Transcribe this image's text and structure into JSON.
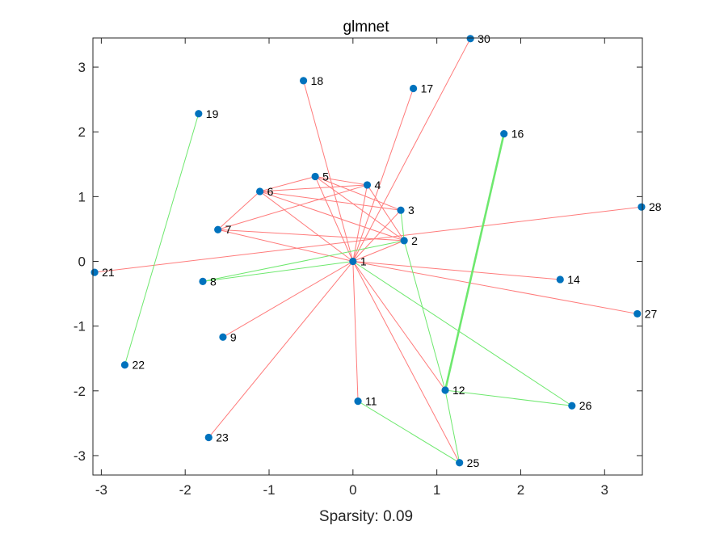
{
  "chart_data": {
    "type": "scatter",
    "title": "glmnet",
    "xlabel": "Sparsity: 0.09",
    "ylabel": "",
    "xlim": [
      -3.1,
      3.45
    ],
    "ylim": [
      -3.3,
      3.45
    ],
    "xticks": [
      -3,
      -2,
      -1,
      0,
      1,
      2,
      3
    ],
    "yticks": [
      -3,
      -2,
      -1,
      0,
      1,
      2,
      3
    ],
    "colors": {
      "point": "#0072BD",
      "positive_edge": "#ff7b7b",
      "negative_edge": "#6ee86e",
      "axis": "#262626"
    },
    "nodes": [
      {
        "id": "1",
        "x": 0.0,
        "y": 0.0
      },
      {
        "id": "2",
        "x": 0.61,
        "y": 0.32
      },
      {
        "id": "3",
        "x": 0.57,
        "y": 0.79
      },
      {
        "id": "4",
        "x": 0.17,
        "y": 1.18
      },
      {
        "id": "5",
        "x": -0.45,
        "y": 1.31
      },
      {
        "id": "6",
        "x": -1.11,
        "y": 1.08
      },
      {
        "id": "7",
        "x": -1.61,
        "y": 0.49
      },
      {
        "id": "8",
        "x": -1.79,
        "y": -0.31
      },
      {
        "id": "9",
        "x": -1.55,
        "y": -1.17
      },
      {
        "id": "11",
        "x": 0.06,
        "y": -2.16
      },
      {
        "id": "12",
        "x": 1.1,
        "y": -1.99
      },
      {
        "id": "14",
        "x": 2.47,
        "y": -0.28
      },
      {
        "id": "16",
        "x": 1.8,
        "y": 1.97
      },
      {
        "id": "17",
        "x": 0.72,
        "y": 2.67
      },
      {
        "id": "18",
        "x": -0.59,
        "y": 2.79
      },
      {
        "id": "19",
        "x": -1.84,
        "y": 2.28
      },
      {
        "id": "21",
        "x": -3.08,
        "y": -0.17
      },
      {
        "id": "22",
        "x": -2.72,
        "y": -1.6
      },
      {
        "id": "23",
        "x": -1.72,
        "y": -2.72
      },
      {
        "id": "25",
        "x": 1.27,
        "y": -3.11
      },
      {
        "id": "26",
        "x": 2.61,
        "y": -2.23
      },
      {
        "id": "27",
        "x": 3.39,
        "y": -0.81
      },
      {
        "id": "28",
        "x": 3.44,
        "y": 0.84
      },
      {
        "id": "30",
        "x": 1.4,
        "y": 3.44
      }
    ],
    "edges": [
      {
        "from": "1",
        "to": "30",
        "sign": "positive"
      },
      {
        "from": "1",
        "to": "18",
        "sign": "positive"
      },
      {
        "from": "1",
        "to": "17",
        "sign": "positive"
      },
      {
        "from": "1",
        "to": "4",
        "sign": "positive"
      },
      {
        "from": "1",
        "to": "3",
        "sign": "positive"
      },
      {
        "from": "1",
        "to": "2",
        "sign": "positive"
      },
      {
        "from": "1",
        "to": "5",
        "sign": "positive"
      },
      {
        "from": "1",
        "to": "6",
        "sign": "positive"
      },
      {
        "from": "1",
        "to": "7",
        "sign": "positive"
      },
      {
        "from": "1",
        "to": "9",
        "sign": "positive"
      },
      {
        "from": "1",
        "to": "23",
        "sign": "positive"
      },
      {
        "from": "1",
        "to": "11",
        "sign": "positive"
      },
      {
        "from": "1",
        "to": "12",
        "sign": "positive"
      },
      {
        "from": "1",
        "to": "25",
        "sign": "positive"
      },
      {
        "from": "1",
        "to": "14",
        "sign": "positive"
      },
      {
        "from": "1",
        "to": "27",
        "sign": "positive"
      },
      {
        "from": "21",
        "to": "28",
        "sign": "positive"
      },
      {
        "from": "6",
        "to": "5",
        "sign": "positive"
      },
      {
        "from": "6",
        "to": "4",
        "sign": "positive"
      },
      {
        "from": "6",
        "to": "3",
        "sign": "positive"
      },
      {
        "from": "6",
        "to": "2",
        "sign": "positive"
      },
      {
        "from": "5",
        "to": "4",
        "sign": "positive"
      },
      {
        "from": "5",
        "to": "3",
        "sign": "positive"
      },
      {
        "from": "5",
        "to": "2",
        "sign": "positive"
      },
      {
        "from": "7",
        "to": "4",
        "sign": "positive"
      },
      {
        "from": "7",
        "to": "2",
        "sign": "positive"
      },
      {
        "from": "6",
        "to": "7",
        "sign": "positive"
      },
      {
        "from": "4",
        "to": "2",
        "sign": "positive"
      },
      {
        "from": "1",
        "to": "8",
        "sign": "negative"
      },
      {
        "from": "8",
        "to": "2",
        "sign": "negative"
      },
      {
        "from": "3",
        "to": "2",
        "sign": "negative"
      },
      {
        "from": "2",
        "to": "12",
        "sign": "negative"
      },
      {
        "from": "1",
        "to": "26",
        "sign": "negative"
      },
      {
        "from": "12",
        "to": "26",
        "sign": "negative"
      },
      {
        "from": "11",
        "to": "25",
        "sign": "negative"
      },
      {
        "from": "12",
        "to": "25",
        "sign": "negative"
      },
      {
        "from": "19",
        "to": "22",
        "sign": "negative"
      },
      {
        "from": "12",
        "to": "16",
        "sign": "negative",
        "weight": "strong"
      }
    ]
  }
}
